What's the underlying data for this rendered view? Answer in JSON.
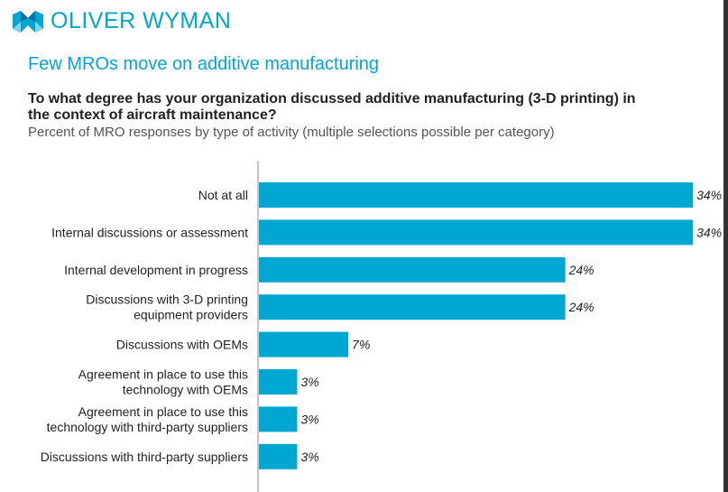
{
  "brand": {
    "name": "OLIVER WYMAN",
    "color": "#00a7d0"
  },
  "chart_data": {
    "type": "bar",
    "orientation": "horizontal",
    "title": "Few MROs move on additive manufacturing",
    "question": "To what degree has your organization discussed additive manufacturing (3-D printing) in the context of aircraft maintenance?",
    "subtitle": "Percent of MRO responses by type of activity (multiple selections possible per category)",
    "categories": [
      [
        "Not at all"
      ],
      [
        "Internal discussions or assessment"
      ],
      [
        "Internal development in progress"
      ],
      [
        "Discussions with 3-D printing",
        "equipment providers"
      ],
      [
        "Discussions with OEMs"
      ],
      [
        "Agreement in place to use this",
        "technology with OEMs"
      ],
      [
        "Agreement in place to use this",
        "technology with third-party suppliers"
      ],
      [
        "Discussions with  third-party suppliers"
      ]
    ],
    "values": [
      34,
      34,
      24,
      24,
      7,
      3,
      3,
      3
    ],
    "labels": [
      "34%",
      "34%",
      "24%",
      "24%",
      "7%",
      "3%",
      "3%",
      "3%"
    ],
    "unit": "%",
    "bar_color": "#00a7d0",
    "grid": false
  }
}
